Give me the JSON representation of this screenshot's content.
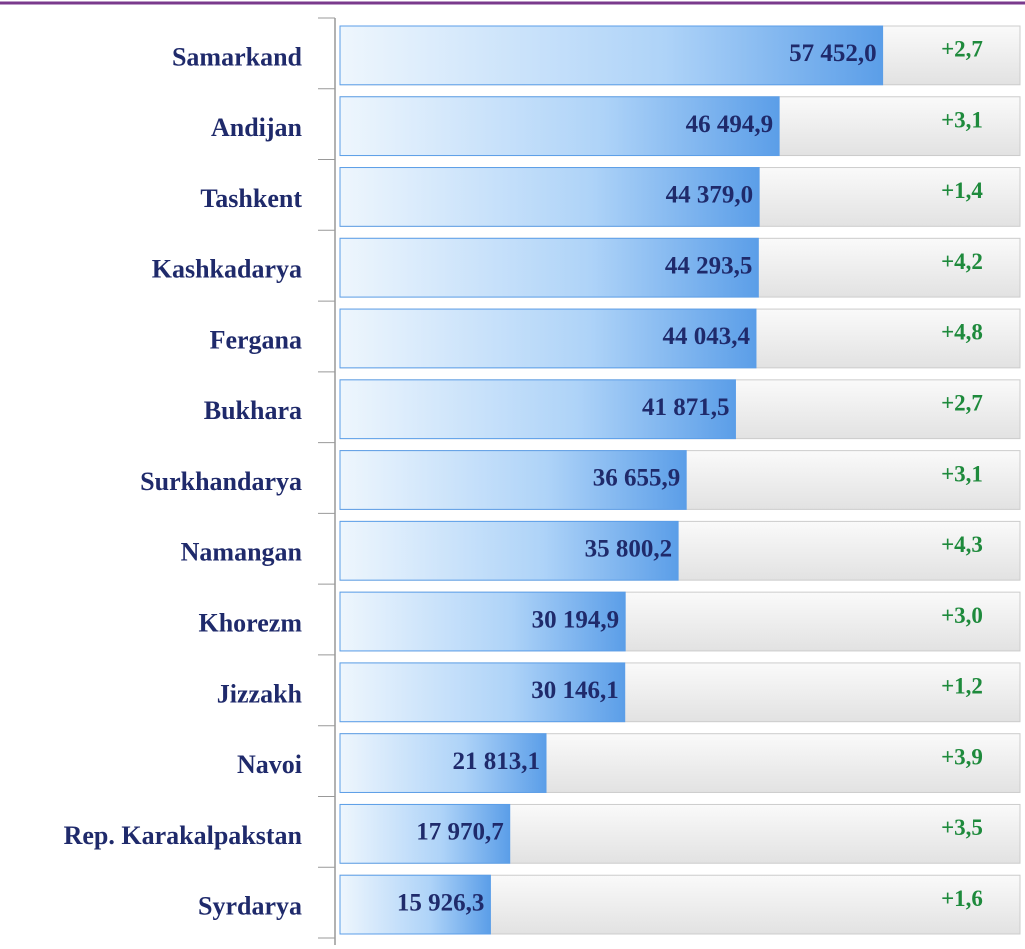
{
  "chart_data": {
    "type": "bar",
    "orientation": "horizontal",
    "categories": [
      "Samarkand",
      "Andijan",
      "Tashkent",
      "Kashkadarya",
      "Fergana",
      "Bukhara",
      "Surkhandarya",
      "Namangan",
      "Khorezm",
      "Jizzakh",
      "Navoi",
      "Rep. Karakalpakstan",
      "Syrdarya"
    ],
    "values": [
      57452.0,
      46494.9,
      44379.0,
      44293.5,
      44043.4,
      41871.5,
      36655.9,
      35800.2,
      30194.9,
      30146.1,
      21813.1,
      17970.7,
      15926.3
    ],
    "value_labels": [
      "57 452,0",
      "46 494,9",
      "44 379,0",
      "44 293,5",
      "44 043,4",
      "41 871,5",
      "36 655,9",
      "35 800,2",
      "30 194,9",
      "30 146,1",
      "21 813,1",
      "17 970,7",
      "15 926,3"
    ],
    "growth": [
      2.7,
      3.1,
      1.4,
      4.2,
      4.8,
      2.7,
      3.1,
      4.3,
      3.0,
      1.2,
      3.9,
      3.5,
      1.6
    ],
    "growth_labels": [
      "+2,7",
      "+3,1",
      "+1,4",
      "+4,2",
      "+4,8",
      "+2,7",
      "+3,1",
      "+4,3",
      "+3,0",
      "+1,2",
      "+3,9",
      "+3,5",
      "+1,6"
    ],
    "xlim": [
      0,
      72000
    ],
    "color": "#5b9ee8"
  }
}
